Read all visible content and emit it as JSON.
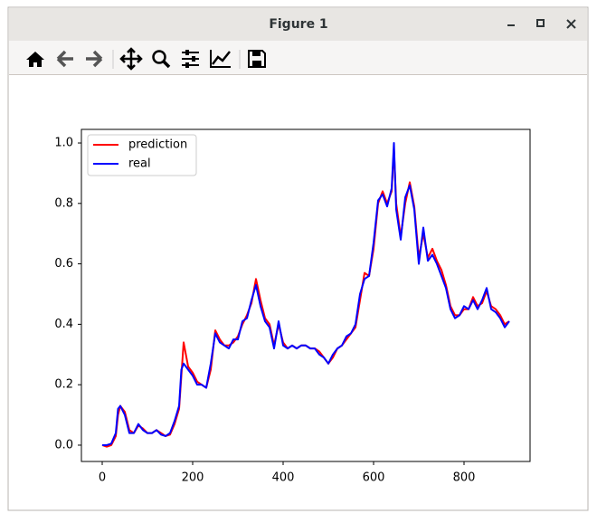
{
  "window": {
    "title": "Figure 1"
  },
  "chart_data": {
    "type": "line",
    "x": [
      0,
      10,
      20,
      30,
      35,
      40,
      50,
      60,
      70,
      80,
      90,
      100,
      110,
      120,
      130,
      140,
      150,
      160,
      170,
      175,
      180,
      190,
      200,
      210,
      220,
      230,
      240,
      250,
      260,
      270,
      280,
      290,
      300,
      310,
      320,
      330,
      340,
      350,
      360,
      370,
      380,
      390,
      400,
      410,
      420,
      430,
      440,
      450,
      460,
      470,
      480,
      490,
      500,
      510,
      520,
      530,
      540,
      550,
      560,
      570,
      580,
      590,
      600,
      610,
      620,
      630,
      640,
      645,
      650,
      660,
      670,
      680,
      690,
      700,
      710,
      720,
      730,
      740,
      750,
      760,
      770,
      780,
      790,
      800,
      810,
      820,
      830,
      840,
      850,
      860,
      870,
      880,
      890,
      900
    ],
    "series": [
      {
        "name": "prediction",
        "color": "#ff0000",
        "values": [
          0.0,
          -0.005,
          0.0,
          0.03,
          0.1,
          0.13,
          0.11,
          0.05,
          0.04,
          0.065,
          0.055,
          0.04,
          0.04,
          0.05,
          0.04,
          0.03,
          0.035,
          0.07,
          0.12,
          0.23,
          0.34,
          0.26,
          0.24,
          0.21,
          0.2,
          0.19,
          0.25,
          0.38,
          0.35,
          0.33,
          0.33,
          0.34,
          0.36,
          0.4,
          0.43,
          0.47,
          0.55,
          0.48,
          0.42,
          0.4,
          0.33,
          0.4,
          0.34,
          0.32,
          0.33,
          0.32,
          0.33,
          0.33,
          0.32,
          0.32,
          0.31,
          0.29,
          0.27,
          0.29,
          0.32,
          0.33,
          0.35,
          0.37,
          0.39,
          0.48,
          0.57,
          0.56,
          0.65,
          0.8,
          0.84,
          0.8,
          0.84,
          0.98,
          0.8,
          0.69,
          0.8,
          0.87,
          0.79,
          0.62,
          0.7,
          0.62,
          0.65,
          0.61,
          0.58,
          0.53,
          0.46,
          0.43,
          0.43,
          0.45,
          0.45,
          0.49,
          0.46,
          0.47,
          0.51,
          0.46,
          0.45,
          0.43,
          0.4,
          0.41
        ]
      },
      {
        "name": "real",
        "color": "#0000ff",
        "values": [
          0.0,
          0.0,
          0.005,
          0.04,
          0.12,
          0.13,
          0.1,
          0.04,
          0.04,
          0.07,
          0.05,
          0.04,
          0.04,
          0.05,
          0.035,
          0.03,
          0.04,
          0.08,
          0.13,
          0.25,
          0.27,
          0.25,
          0.23,
          0.2,
          0.2,
          0.19,
          0.27,
          0.37,
          0.34,
          0.33,
          0.32,
          0.35,
          0.35,
          0.41,
          0.42,
          0.48,
          0.53,
          0.46,
          0.41,
          0.39,
          0.32,
          0.41,
          0.33,
          0.32,
          0.33,
          0.32,
          0.33,
          0.33,
          0.32,
          0.32,
          0.3,
          0.29,
          0.27,
          0.3,
          0.32,
          0.33,
          0.36,
          0.37,
          0.4,
          0.5,
          0.55,
          0.56,
          0.67,
          0.81,
          0.83,
          0.79,
          0.85,
          1.0,
          0.78,
          0.68,
          0.82,
          0.86,
          0.78,
          0.6,
          0.72,
          0.61,
          0.63,
          0.6,
          0.56,
          0.52,
          0.45,
          0.42,
          0.43,
          0.46,
          0.45,
          0.48,
          0.45,
          0.48,
          0.52,
          0.45,
          0.44,
          0.42,
          0.39,
          0.41
        ]
      }
    ],
    "xlim": [
      -46,
      946
    ],
    "ylim": [
      -0.054,
      1.045
    ],
    "xticks": [
      0,
      200,
      400,
      600,
      800
    ],
    "yticks": [
      {
        "value": 0,
        "label": "0.0"
      },
      {
        "value": 0.2,
        "label": "0.2"
      },
      {
        "value": 0.4,
        "label": "0.4"
      },
      {
        "value": 0.6,
        "label": "0.6"
      },
      {
        "value": 0.8,
        "label": "0.8"
      },
      {
        "value": 1,
        "label": "1.0"
      }
    ],
    "legend": "upper left"
  }
}
